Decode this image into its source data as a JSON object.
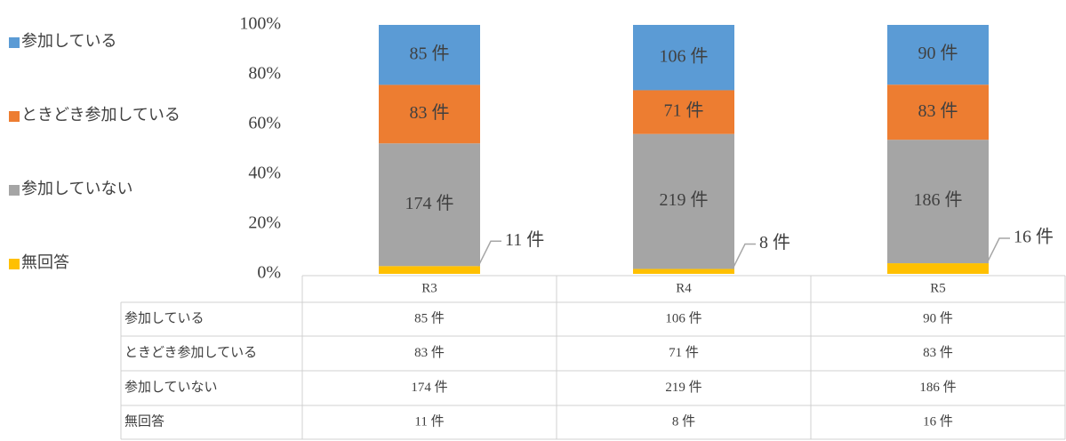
{
  "chart_data": {
    "type": "bar",
    "stacked": "percent",
    "categories": [
      "R3",
      "R4",
      "R5"
    ],
    "series": [
      {
        "name": "参加している",
        "color": "#5b9bd5",
        "values": [
          85,
          106,
          90
        ],
        "value_labels": [
          "85 件",
          "106 件",
          "90 件"
        ]
      },
      {
        "name": "ときどき参加している",
        "color": "#ed7d31",
        "values": [
          83,
          71,
          83
        ],
        "value_labels": [
          "83 件",
          "71 件",
          "83 件"
        ]
      },
      {
        "name": "参加していない",
        "color": "#a5a5a5",
        "values": [
          174,
          219,
          186
        ],
        "value_labels": [
          "174 件",
          "219 件",
          "186 件"
        ]
      },
      {
        "name": "無回答",
        "color": "#ffc000",
        "values": [
          11,
          8,
          16
        ],
        "value_labels": [
          "11 件",
          "8 件",
          "16 件"
        ]
      }
    ],
    "ylim": [
      0,
      100
    ],
    "yticks": [
      {
        "value": 0,
        "label": "0%"
      },
      {
        "value": 20,
        "label": "20%"
      },
      {
        "value": 40,
        "label": "40%"
      },
      {
        "value": 60,
        "label": "60%"
      },
      {
        "value": 80,
        "label": "80%"
      },
      {
        "value": 100,
        "label": "100%"
      }
    ],
    "legend": "left",
    "data_table": true
  }
}
